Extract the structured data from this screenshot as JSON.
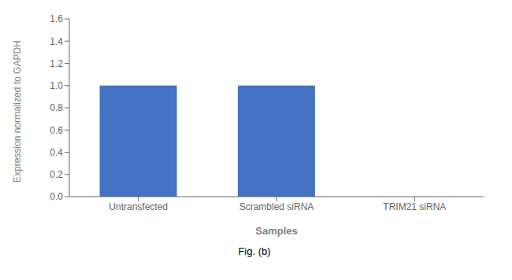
{
  "chart_data": {
    "type": "bar",
    "xlabel": "Samples",
    "ylabel": "Expression normalized to GAPDH",
    "categories": [
      "Untransfected",
      "Scrambled siRNA",
      "TRIM21 siRNA"
    ],
    "values": [
      1.0,
      1.0,
      0.0
    ],
    "color": "#4472c4",
    "ylim": [
      0,
      1.6
    ],
    "yticks": [
      {
        "value": 0,
        "label": "0.0"
      },
      0.2,
      0.4,
      0.6,
      0.8,
      {
        "value": 1.0,
        "label": "1.0"
      },
      1.2,
      1.4,
      1.6
    ],
    "grid": false,
    "annotations": [
      "Fig. (b)"
    ]
  }
}
